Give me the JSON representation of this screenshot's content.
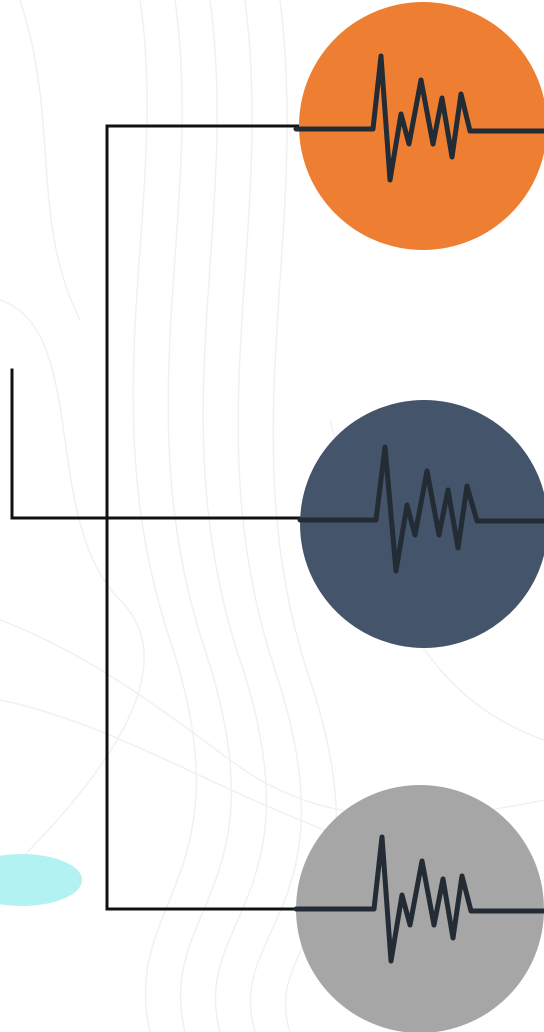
{
  "theme": {
    "background": "#ffffff",
    "line_color": "#111111",
    "wave_color": "#232b35",
    "accent_blob": "#b3f2f2"
  },
  "nodes": [
    {
      "name": "node-orange",
      "color": "#ee7f32",
      "icon": "pulse-wave-icon"
    },
    {
      "name": "node-slate",
      "color": "#44546a",
      "icon": "pulse-wave-icon"
    },
    {
      "name": "node-gray",
      "color": "#a6a6a6",
      "icon": "pulse-wave-icon"
    }
  ]
}
